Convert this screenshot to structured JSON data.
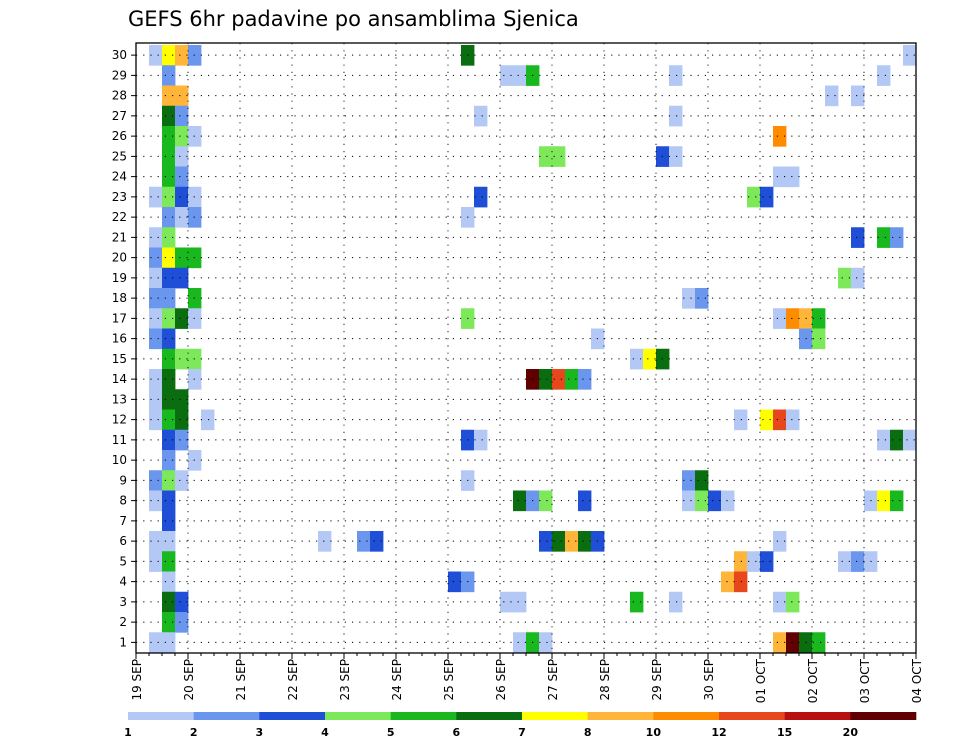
{
  "chart_data": {
    "type": "heatmap",
    "title": "GEFS 6hr padavine po ansamblima Sjenica",
    "xlabel": "",
    "ylabel": "",
    "x_tick_labels": [
      "19 SEP",
      "20 SEP",
      "21 SEP",
      "22 SEP",
      "23 SEP",
      "24 SEP",
      "25 SEP",
      "26 SEP",
      "27 SEP",
      "28 SEP",
      "29 SEP",
      "30 SEP",
      "01 OCT",
      "02 OCT",
      "03 OCT",
      "04 OCT"
    ],
    "y_tick_labels": [
      "1",
      "2",
      "3",
      "4",
      "5",
      "6",
      "7",
      "8",
      "9",
      "10",
      "11",
      "12",
      "13",
      "14",
      "15",
      "16",
      "17",
      "18",
      "19",
      "20",
      "21",
      "22",
      "23",
      "24",
      "25",
      "26",
      "27",
      "28",
      "29",
      "30"
    ],
    "x_range_days": [
      0,
      15
    ],
    "time_step_hours": 6,
    "grid": true,
    "color_scale": {
      "thresholds": [
        "1",
        "2",
        "3",
        "4",
        "5",
        "6",
        "7",
        "8",
        "10",
        "12",
        "15",
        "20"
      ],
      "colors": [
        "#b3c8f5",
        "#6b96ee",
        "#1f4fd6",
        "#7ee85b",
        "#19b81e",
        "#0a6e10",
        "#ffff00",
        "#ffb53a",
        "#ff8c00",
        "#e8461c",
        "#b81010",
        "#600000"
      ]
    },
    "cells_note": "each cell: [member (1-30), 6h step index from 19 SEP 00z, color class 1-12]",
    "cells": [
      [
        30,
        1,
        1
      ],
      [
        30,
        2,
        7
      ],
      [
        30,
        3,
        8
      ],
      [
        30,
        4,
        2
      ],
      [
        30,
        25,
        6
      ],
      [
        30,
        59,
        1
      ],
      [
        29,
        2,
        2
      ],
      [
        29,
        28,
        1
      ],
      [
        29,
        29,
        1
      ],
      [
        29,
        30,
        5
      ],
      [
        29,
        41,
        1
      ],
      [
        29,
        57,
        1
      ],
      [
        28,
        2,
        8
      ],
      [
        28,
        3,
        8
      ],
      [
        28,
        53,
        1
      ],
      [
        28,
        55,
        1
      ],
      [
        27,
        2,
        6
      ],
      [
        27,
        3,
        2
      ],
      [
        27,
        26,
        1
      ],
      [
        27,
        41,
        1
      ],
      [
        26,
        2,
        5
      ],
      [
        26,
        3,
        4
      ],
      [
        26,
        4,
        1
      ],
      [
        26,
        49,
        9
      ],
      [
        25,
        2,
        5
      ],
      [
        25,
        3,
        1
      ],
      [
        25,
        31,
        4
      ],
      [
        25,
        32,
        4
      ],
      [
        25,
        40,
        3
      ],
      [
        25,
        41,
        1
      ],
      [
        24,
        2,
        5
      ],
      [
        24,
        3,
        2
      ],
      [
        24,
        49,
        1
      ],
      [
        24,
        50,
        1
      ],
      [
        23,
        1,
        1
      ],
      [
        23,
        2,
        4
      ],
      [
        23,
        3,
        3
      ],
      [
        23,
        4,
        1
      ],
      [
        23,
        26,
        3
      ],
      [
        23,
        47,
        4
      ],
      [
        23,
        48,
        3
      ],
      [
        22,
        2,
        2
      ],
      [
        22,
        3,
        1
      ],
      [
        22,
        4,
        2
      ],
      [
        22,
        25,
        1
      ],
      [
        21,
        1,
        1
      ],
      [
        21,
        2,
        4
      ],
      [
        21,
        55,
        3
      ],
      [
        21,
        57,
        5
      ],
      [
        21,
        58,
        2
      ],
      [
        20,
        1,
        2
      ],
      [
        20,
        2,
        7
      ],
      [
        20,
        3,
        5
      ],
      [
        20,
        4,
        5
      ],
      [
        19,
        1,
        1
      ],
      [
        19,
        2,
        3
      ],
      [
        19,
        3,
        3
      ],
      [
        19,
        54,
        4
      ],
      [
        19,
        55,
        1
      ],
      [
        18,
        1,
        2
      ],
      [
        18,
        2,
        2
      ],
      [
        18,
        4,
        5
      ],
      [
        18,
        42,
        1
      ],
      [
        18,
        43,
        2
      ],
      [
        17,
        1,
        1
      ],
      [
        17,
        2,
        4
      ],
      [
        17,
        3,
        6
      ],
      [
        17,
        4,
        1
      ],
      [
        17,
        25,
        4
      ],
      [
        17,
        49,
        1
      ],
      [
        17,
        50,
        9
      ],
      [
        17,
        51,
        8
      ],
      [
        17,
        52,
        5
      ],
      [
        16,
        1,
        2
      ],
      [
        16,
        2,
        3
      ],
      [
        16,
        35,
        1
      ],
      [
        16,
        51,
        2
      ],
      [
        16,
        52,
        4
      ],
      [
        15,
        2,
        5
      ],
      [
        15,
        3,
        4
      ],
      [
        15,
        4,
        4
      ],
      [
        15,
        38,
        1
      ],
      [
        15,
        39,
        7
      ],
      [
        15,
        40,
        6
      ],
      [
        14,
        1,
        1
      ],
      [
        14,
        2,
        6
      ],
      [
        14,
        4,
        1
      ],
      [
        14,
        30,
        12
      ],
      [
        14,
        31,
        6
      ],
      [
        14,
        32,
        10
      ],
      [
        14,
        33,
        5
      ],
      [
        14,
        34,
        2
      ],
      [
        13,
        1,
        1
      ],
      [
        13,
        2,
        6
      ],
      [
        13,
        3,
        6
      ],
      [
        12,
        1,
        1
      ],
      [
        12,
        2,
        5
      ],
      [
        12,
        3,
        6
      ],
      [
        12,
        5,
        1
      ],
      [
        12,
        46,
        1
      ],
      [
        12,
        48,
        7
      ],
      [
        12,
        49,
        10
      ],
      [
        12,
        50,
        1
      ],
      [
        11,
        2,
        3
      ],
      [
        11,
        3,
        2
      ],
      [
        11,
        25,
        3
      ],
      [
        11,
        26,
        1
      ],
      [
        11,
        57,
        1
      ],
      [
        11,
        58,
        6
      ],
      [
        11,
        59,
        1
      ],
      [
        10,
        2,
        2
      ],
      [
        10,
        4,
        1
      ],
      [
        9,
        1,
        2
      ],
      [
        9,
        2,
        4
      ],
      [
        9,
        3,
        1
      ],
      [
        9,
        25,
        1
      ],
      [
        9,
        42,
        2
      ],
      [
        9,
        43,
        6
      ],
      [
        8,
        1,
        1
      ],
      [
        8,
        2,
        3
      ],
      [
        8,
        29,
        6
      ],
      [
        8,
        30,
        2
      ],
      [
        8,
        31,
        4
      ],
      [
        8,
        34,
        3
      ],
      [
        8,
        42,
        1
      ],
      [
        8,
        43,
        4
      ],
      [
        8,
        44,
        3
      ],
      [
        8,
        45,
        1
      ],
      [
        8,
        56,
        1
      ],
      [
        8,
        57,
        7
      ],
      [
        8,
        58,
        5
      ],
      [
        7,
        2,
        3
      ],
      [
        6,
        1,
        1
      ],
      [
        6,
        2,
        1
      ],
      [
        6,
        14,
        1
      ],
      [
        6,
        17,
        2
      ],
      [
        6,
        18,
        3
      ],
      [
        6,
        31,
        3
      ],
      [
        6,
        32,
        6
      ],
      [
        6,
        33,
        8
      ],
      [
        6,
        34,
        6
      ],
      [
        6,
        35,
        3
      ],
      [
        6,
        49,
        1
      ],
      [
        5,
        1,
        1
      ],
      [
        5,
        2,
        5
      ],
      [
        5,
        46,
        8
      ],
      [
        5,
        47,
        1
      ],
      [
        5,
        48,
        3
      ],
      [
        5,
        54,
        1
      ],
      [
        5,
        55,
        2
      ],
      [
        5,
        56,
        1
      ],
      [
        4,
        2,
        1
      ],
      [
        4,
        24,
        3
      ],
      [
        4,
        25,
        2
      ],
      [
        4,
        45,
        8
      ],
      [
        4,
        46,
        10
      ],
      [
        3,
        2,
        6
      ],
      [
        3,
        3,
        3
      ],
      [
        3,
        28,
        1
      ],
      [
        3,
        29,
        1
      ],
      [
        3,
        38,
        5
      ],
      [
        3,
        41,
        1
      ],
      [
        3,
        49,
        1
      ],
      [
        3,
        50,
        4
      ],
      [
        2,
        2,
        5
      ],
      [
        2,
        3,
        2
      ],
      [
        1,
        1,
        1
      ],
      [
        1,
        2,
        1
      ],
      [
        1,
        29,
        1
      ],
      [
        1,
        30,
        5
      ],
      [
        1,
        31,
        1
      ],
      [
        1,
        49,
        8
      ],
      [
        1,
        50,
        12
      ],
      [
        1,
        51,
        6
      ],
      [
        1,
        52,
        5
      ]
    ]
  }
}
